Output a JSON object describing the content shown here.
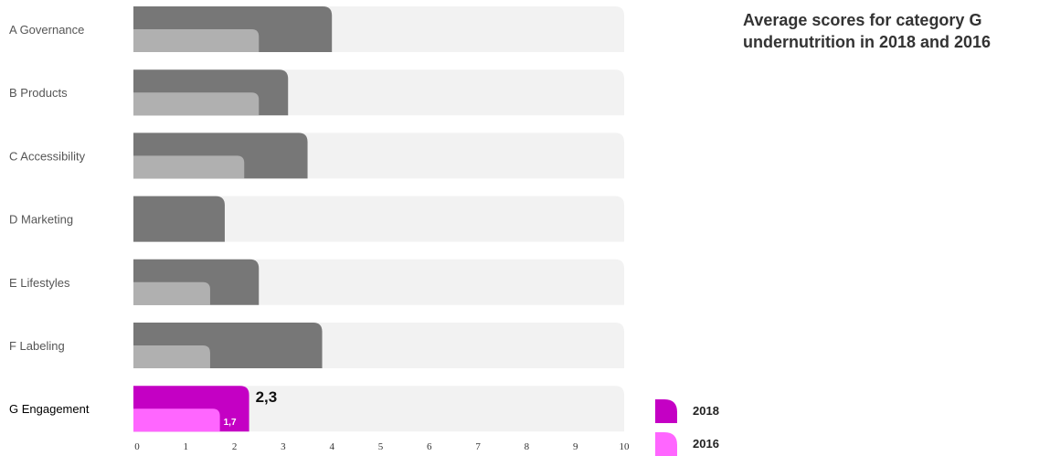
{
  "chart_data": {
    "type": "bar",
    "orientation": "horizontal",
    "title": "Average scores for category G undernutrition in 2018 and 2016",
    "categories": [
      "A  Governance",
      "B  Products",
      "C  Accessibility",
      "D  Marketing",
      "E  Lifestyles",
      "F  Labeling",
      "G  Engagement"
    ],
    "series": [
      {
        "name": "2018",
        "values": [
          4.0,
          3.1,
          3.5,
          1.8,
          2.5,
          3.8,
          2.3
        ]
      },
      {
        "name": "2016",
        "values": [
          2.5,
          2.5,
          2.2,
          null,
          1.5,
          1.5,
          1.7
        ]
      }
    ],
    "highlight_category": "G  Engagement",
    "data_labels": {
      "2018": "2,3",
      "2016": "1,7"
    },
    "xlim": [
      0,
      10
    ],
    "xticks": [
      "0",
      "1",
      "2",
      "3",
      "4",
      "5",
      "6",
      "7",
      "8",
      "9",
      "10"
    ],
    "grid": false,
    "legend_position": "bottom-right",
    "colors": {
      "track": "#f2f2f2",
      "bar_2018": "#777777",
      "bar_2016": "#b0b0b0",
      "highlight_2018": "#c400c4",
      "highlight_2016": "#ff66ff"
    }
  }
}
